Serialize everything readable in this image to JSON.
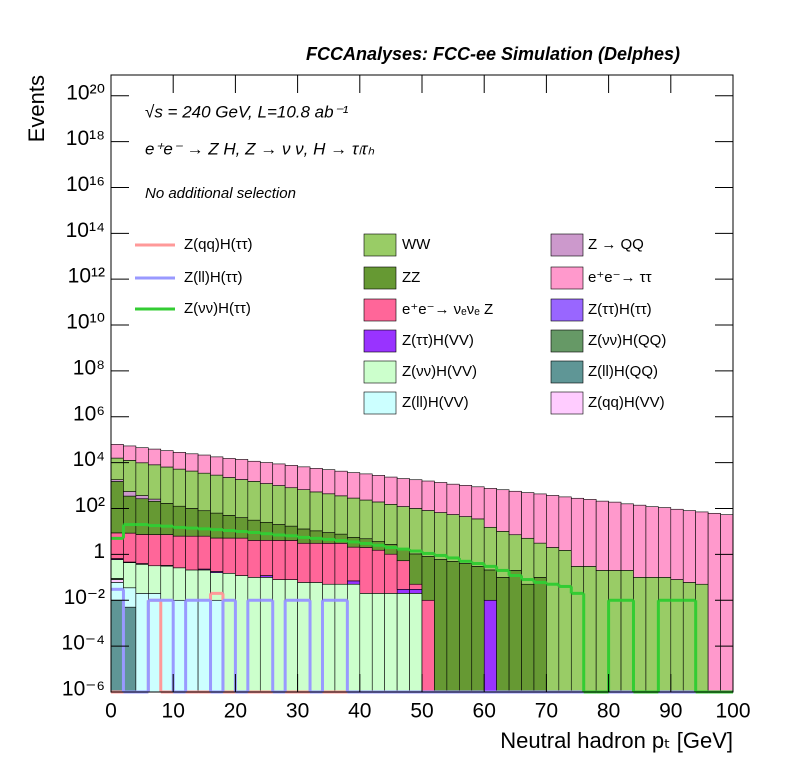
{
  "chart_data": {
    "type": "stacked_histogram",
    "title": "FCCAnalyses: FCC-ee Simulation (Delphes)",
    "annotations": [
      "√s = 240 GeV, L=10.8 ab⁻¹",
      "e⁺e⁻ → Z H, Z → ν ν, H → τₗτₕ",
      "No additional selection"
    ],
    "xlabel": "Neutral hadron pₜ [GeV]",
    "ylabel": "Events",
    "log_y": true,
    "xlim": [
      0,
      100
    ],
    "ylim": [
      1e-06,
      8e+20
    ],
    "xticks": [
      0,
      10,
      20,
      30,
      40,
      50,
      60,
      70,
      80,
      90,
      100
    ],
    "yticks": [
      {
        "value": 1e-06,
        "label": "10⁻⁶"
      },
      {
        "value": 0.0001,
        "label": "10⁻⁴"
      },
      {
        "value": 0.01,
        "label": "10⁻²"
      },
      1,
      {
        "value": 100.0,
        "label": "10²"
      },
      {
        "value": 10000.0,
        "label": "10⁴"
      },
      {
        "value": 1000000.0,
        "label": "10⁶"
      },
      {
        "value": 100000000.0,
        "label": "10⁸"
      },
      {
        "value": 10000000000.0,
        "label": "10¹⁰"
      },
      {
        "value": 1000000000000.0,
        "label": "10¹²"
      },
      {
        "value": 100000000000000.0,
        "label": "10¹⁴"
      },
      {
        "value": 1e+16,
        "label": "10¹⁶"
      },
      {
        "value": 1e+18,
        "label": "10¹⁸"
      },
      {
        "value": 1e+20,
        "label": "10²⁰"
      }
    ],
    "bins": [
      0,
      2,
      4,
      6,
      8,
      10,
      12,
      14,
      16,
      18,
      20,
      22,
      24,
      26,
      28,
      30,
      32,
      34,
      36,
      38,
      40,
      42,
      44,
      46,
      48,
      50,
      52,
      54,
      56,
      58,
      60,
      62,
      64,
      66,
      68,
      70,
      72,
      74,
      76,
      78,
      80,
      82,
      84,
      86,
      88,
      90,
      92,
      94,
      96,
      98,
      100
    ],
    "series": [
      {
        "name": "Z(ll)H(QQ)",
        "color": "#5f9696",
        "values": [
          0.01,
          0.005,
          0,
          0,
          0,
          0,
          0,
          0,
          0,
          0,
          0,
          0,
          0,
          0,
          0,
          0,
          0,
          0,
          0,
          0,
          0,
          0,
          0,
          0,
          0,
          0,
          0,
          0,
          0,
          0,
          0,
          0,
          0,
          0,
          0,
          0,
          0,
          0,
          0,
          0,
          0,
          0,
          0,
          0,
          0,
          0,
          0,
          0,
          0,
          0
        ]
      },
      {
        "name": "Z(ll)H(VV)",
        "color": "#ccffff",
        "values": [
          0.05,
          0.03,
          0.02,
          0.02,
          0.01,
          0.01,
          0.01,
          0.01,
          0.01,
          0,
          0,
          0,
          0,
          0,
          0,
          0,
          0,
          0,
          0,
          0,
          0,
          0,
          0,
          0,
          0,
          0,
          0,
          0,
          0,
          0,
          0,
          0,
          0,
          0,
          0,
          0,
          0,
          0,
          0,
          0,
          0,
          0,
          0,
          0,
          0,
          0,
          0,
          0,
          0,
          0
        ]
      },
      {
        "name": "Z(qq)H(VV)",
        "color": "#ffccff",
        "values": [
          0.02,
          0,
          0,
          0,
          0,
          0,
          0,
          0,
          0,
          0,
          0,
          0,
          0,
          0,
          0,
          0,
          0,
          0,
          0,
          0,
          0,
          0,
          0,
          0,
          0,
          0,
          0,
          0,
          0,
          0,
          0,
          0,
          0,
          0,
          0,
          0,
          0,
          0,
          0,
          0,
          0,
          0,
          0,
          0,
          0,
          0,
          0,
          0,
          0,
          0
        ]
      },
      {
        "name": "Z(νν)H(QQ)",
        "color": "#669966",
        "values": [
          0.01,
          0,
          0,
          0,
          0,
          0,
          0,
          0,
          0,
          0,
          0,
          0,
          0,
          0,
          0,
          0,
          0,
          0,
          0,
          0,
          0,
          0,
          0,
          0,
          0,
          0,
          0,
          0,
          0,
          0,
          0,
          0,
          0,
          0,
          0,
          0,
          0,
          0,
          0,
          0,
          0,
          0,
          0,
          0,
          0,
          0,
          0,
          0,
          0,
          0
        ]
      },
      {
        "name": "Z(νν)H(VV)",
        "color": "#ccffcc",
        "values": [
          0.5,
          0.4,
          0.35,
          0.3,
          0.3,
          0.25,
          0.2,
          0.2,
          0.15,
          0.15,
          0.12,
          0.1,
          0.1,
          0.08,
          0.08,
          0.06,
          0.06,
          0.05,
          0.05,
          0.05,
          0.02,
          0.02,
          0.02,
          0.02,
          0.02,
          0,
          0,
          0,
          0,
          0,
          0,
          0,
          0,
          0,
          0,
          0,
          0,
          0,
          0,
          0,
          0,
          0,
          0,
          0,
          0,
          0,
          0,
          0,
          0,
          0
        ]
      },
      {
        "name": "Z(ττ)H(VV)",
        "color": "#9933ff",
        "values": [
          0.05,
          0.03,
          0.03,
          0,
          0.02,
          0,
          0,
          0.02,
          0.02,
          0,
          0,
          0,
          0.02,
          0,
          0,
          0,
          0,
          0,
          0,
          0.02,
          0,
          0,
          0,
          0.01,
          0.01,
          0,
          0,
          0,
          0,
          0,
          0.01,
          0,
          0,
          0,
          0,
          0,
          0,
          0,
          0,
          0,
          0,
          0,
          0,
          0,
          0,
          0,
          0,
          0,
          0,
          0
        ]
      },
      {
        "name": "Z(ττ)H(ττ)",
        "color": "#9966ff",
        "values": [
          0.02,
          0,
          0,
          0,
          0,
          0,
          0,
          0,
          0,
          0,
          0,
          0,
          0,
          0,
          0,
          0,
          0,
          0,
          0,
          0,
          0,
          0,
          0,
          0,
          0,
          0,
          0,
          0,
          0,
          0,
          0,
          0,
          0,
          0,
          0,
          0,
          0,
          0,
          0,
          0,
          0,
          0,
          0,
          0,
          0,
          0,
          0,
          0,
          0,
          0
        ]
      },
      {
        "name": "e⁺e⁻→ νₑνₑ Z",
        "color": "#ff6699",
        "values": [
          8,
          8,
          7,
          7,
          7,
          6,
          6,
          6,
          5,
          5,
          5,
          4,
          4,
          4,
          4,
          3,
          3,
          3,
          3,
          2,
          2,
          1.5,
          1,
          0.5,
          0.02,
          0.01,
          0,
          0,
          0,
          0,
          0,
          0,
          0,
          0,
          0,
          0,
          0,
          0,
          0,
          0,
          0,
          0,
          0,
          0,
          0,
          0,
          0,
          0,
          0,
          0
        ]
      },
      {
        "name": "ZZ",
        "color": "#669933",
        "values": [
          1500,
          340,
          260,
          200,
          160,
          120,
          95,
          74,
          58,
          45,
          35,
          27,
          21,
          16,
          13,
          9.8,
          7.6,
          5.9,
          4.6,
          3.5,
          2.8,
          2.1,
          1.7,
          1.3,
          1,
          0.8,
          0.6,
          0.5,
          0.4,
          0.3,
          0.2,
          0.1,
          0.2,
          0.05,
          0.1,
          0,
          0,
          0,
          0,
          0,
          0,
          0,
          0,
          0,
          0,
          0,
          0,
          0,
          0,
          0
        ]
      },
      {
        "name": "Z → QQ",
        "color": "#cc99cc",
        "values": [
          300,
          200,
          100,
          50,
          0,
          0,
          0,
          0,
          0,
          0,
          0,
          0,
          0,
          0,
          0,
          0,
          0,
          0,
          0,
          0,
          0,
          0,
          0,
          0,
          0,
          0,
          0,
          0,
          0,
          0,
          0,
          0,
          0,
          0,
          0,
          0,
          0,
          0,
          0,
          0,
          0,
          0,
          0,
          0,
          0,
          0,
          0,
          0,
          0,
          0
        ]
      },
      {
        "name": "WW",
        "color": "#99cc66",
        "values": [
          14000,
          12000,
          9500,
          7800,
          6300,
          5100,
          4200,
          3400,
          2800,
          2200,
          1800,
          1500,
          1200,
          980,
          790,
          650,
          520,
          430,
          350,
          280,
          230,
          190,
          150,
          120,
          100,
          81,
          66,
          54,
          44,
          35,
          15,
          10,
          7,
          5,
          3,
          2,
          1.5,
          0.3,
          0.3,
          0.2,
          0.2,
          0.2,
          0.1,
          0.1,
          0.1,
          0.08,
          0.06,
          0.05,
          0,
          0
        ]
      },
      {
        "name": "e⁺e⁻→ ττ",
        "color": "#ff99cc",
        "values": [
          47000,
          41000,
          35000,
          31000,
          27000,
          23000,
          20000,
          18000,
          15000,
          13000,
          12000,
          10000,
          8900,
          7800,
          6800,
          5900,
          5100,
          4500,
          3900,
          3400,
          3000,
          2600,
          2200,
          1900,
          1700,
          1500,
          1300,
          1100,
          980,
          850,
          740,
          650,
          560,
          490,
          430,
          370,
          320,
          280,
          250,
          210,
          190,
          160,
          140,
          120,
          110,
          93,
          81,
          71,
          62,
          54
        ]
      }
    ],
    "line_series": [
      {
        "name": "Z(qq)H(ττ)",
        "color": "#ff9999",
        "values": [
          0,
          0,
          0,
          0.01,
          0,
          0,
          0,
          0,
          0.02,
          0,
          0,
          0,
          0,
          0,
          0,
          0,
          0,
          0,
          0,
          0,
          0,
          0,
          0,
          0,
          0,
          0,
          0,
          0,
          0,
          0,
          0,
          0,
          0,
          0,
          0,
          0,
          0,
          0,
          0,
          0,
          0,
          0,
          0,
          0,
          0,
          0,
          0,
          0,
          0,
          0
        ]
      },
      {
        "name": "Z(ll)H(ττ)",
        "color": "#9999ff",
        "values": [
          0.03,
          0,
          0,
          0.01,
          0.01,
          0,
          0.01,
          0.01,
          0,
          0.01,
          0,
          0.01,
          0.01,
          0,
          0.01,
          0.01,
          0,
          0.01,
          0.01,
          0,
          0,
          0,
          0,
          0,
          0,
          0,
          0,
          0,
          0,
          0,
          0,
          0,
          0,
          0,
          0,
          0,
          0,
          0,
          0,
          0,
          0,
          0,
          0,
          0,
          0,
          0,
          0,
          0,
          0,
          0
        ]
      },
      {
        "name": "Z(νν)H(ττ)",
        "color": "#33cc33",
        "values": [
          5,
          20,
          20,
          18,
          17,
          15,
          14,
          13,
          12,
          11,
          10,
          9,
          8,
          7,
          6.5,
          5.5,
          5,
          4.5,
          4,
          3.5,
          3,
          2.5,
          2,
          1.7,
          1.4,
          1.1,
          0.9,
          0.7,
          0.5,
          0.4,
          0.3,
          0.2,
          0.12,
          0.08,
          0.06,
          0.05,
          0.04,
          0.02,
          0,
          0,
          0.01,
          0.01,
          0,
          0,
          0.01,
          0.01,
          0.01,
          0,
          0,
          0
        ]
      }
    ]
  }
}
